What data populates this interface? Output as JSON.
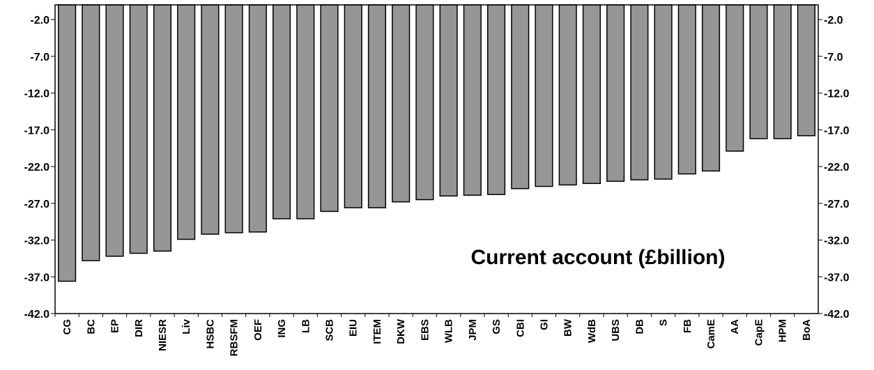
{
  "chart_data": {
    "type": "bar",
    "title": "Current account (£billion)",
    "xlabel": "",
    "ylabel": "",
    "ylim": [
      -42.0,
      0.0
    ],
    "yticks": [
      "-2.0",
      "-7.0",
      "-12.0",
      "-17.0",
      "-22.0",
      "-27.0",
      "-32.0",
      "-37.0",
      "-42.0"
    ],
    "ytick_values": [
      -2,
      -7,
      -12,
      -17,
      -22,
      -27,
      -32,
      -37,
      -42
    ],
    "grid": false,
    "legend": "none",
    "bar_color": "#969696",
    "categories": [
      "CG",
      "BC",
      "EP",
      "DIR",
      "NIESR",
      "Liv",
      "HSBC",
      "RBSFM",
      "OEF",
      "ING",
      "LB",
      "SCB",
      "EIU",
      "ITEM",
      "DKW",
      "EBS",
      "WLB",
      "JPM",
      "GS",
      "CBI",
      "GI",
      "BW",
      "WdB",
      "UBS",
      "DB",
      "S",
      "FB",
      "CamE",
      "AA",
      "CapE",
      "HPM",
      "BoA"
    ],
    "values": [
      -37.6,
      -34.8,
      -34.2,
      -33.8,
      -33.5,
      -31.9,
      -31.2,
      -31.0,
      -30.9,
      -29.1,
      -29.1,
      -28.1,
      -27.6,
      -27.6,
      -26.8,
      -26.5,
      -26.0,
      -25.9,
      -25.8,
      -25.0,
      -24.7,
      -24.5,
      -24.3,
      -24.0,
      -23.8,
      -23.7,
      -23.0,
      -22.6,
      -19.9,
      -18.2,
      -18.2,
      -17.8
    ]
  }
}
